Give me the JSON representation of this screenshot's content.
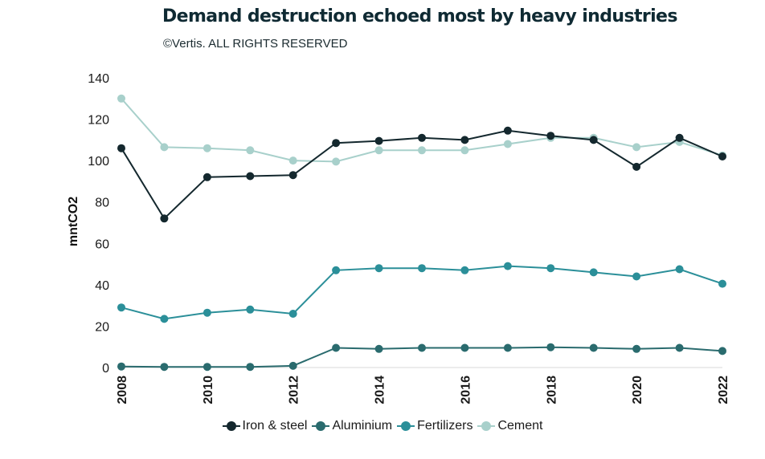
{
  "header": {
    "title": "Demand destruction echoed most by heavy industries",
    "subtitle": "©Vertis. ALL RIGHTS RESERVED"
  },
  "chart_data": {
    "type": "line",
    "title": "Demand destruction echoed most by heavy industries",
    "subtitle": "©Vertis. ALL RIGHTS RESERVED",
    "xlabel": "",
    "ylabel": "mntCO2",
    "ylim": [
      0,
      140
    ],
    "yticks": [
      0,
      20,
      40,
      60,
      80,
      100,
      120,
      140
    ],
    "xticks": [
      2008,
      2010,
      2012,
      2014,
      2016,
      2018,
      2020,
      2022
    ],
    "x": [
      2008,
      2009,
      2010,
      2011,
      2012,
      2013,
      2014,
      2015,
      2016,
      2017,
      2018,
      2019,
      2020,
      2021,
      2022
    ],
    "grid": false,
    "legend_position": "bottom",
    "series": [
      {
        "name": "Iron & steel",
        "color": "#14282e",
        "values": [
          106,
          72,
          92,
          92.5,
          93,
          108.5,
          109.5,
          111,
          110,
          114.5,
          112,
          110,
          97,
          111,
          102
        ]
      },
      {
        "name": "Aluminium",
        "color": "#2a6b6e",
        "values": [
          0.5,
          0.3,
          0.3,
          0.3,
          0.8,
          9.5,
          9,
          9.5,
          9.5,
          9.5,
          9.8,
          9.5,
          9,
          9.5,
          8
        ]
      },
      {
        "name": "Fertilizers",
        "color": "#2b8f99",
        "values": [
          29,
          23.5,
          26.5,
          28,
          26,
          47,
          48,
          48,
          47,
          49,
          48,
          46,
          44,
          47.5,
          40.5
        ]
      },
      {
        "name": "Cement",
        "color": "#a8d0cb",
        "values": [
          130,
          106.5,
          106,
          105,
          100,
          99.5,
          105,
          105,
          105,
          108,
          111,
          111,
          106.5,
          109,
          102.5
        ]
      }
    ]
  }
}
